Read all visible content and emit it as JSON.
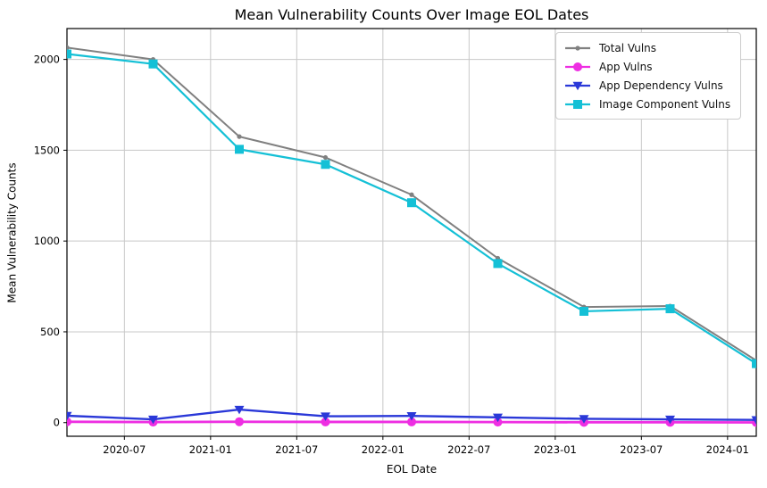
{
  "title": "Mean Vulnerability Counts Over Image EOL Dates",
  "chart_data": {
    "type": "line",
    "title": "Mean Vulnerability Counts Over Image EOL Dates",
    "xlabel": "EOL Date",
    "ylabel": "Mean Vulnerability Counts",
    "grid": true,
    "grid_color": "#c8c8c8",
    "legend_position": "upper right",
    "x_dates": [
      "2020-03",
      "2020-09",
      "2021-03",
      "2021-09",
      "2022-03",
      "2022-09",
      "2023-03",
      "2023-09",
      "2024-03"
    ],
    "x_months": [
      0,
      6,
      12,
      18,
      24,
      30,
      36,
      42,
      48
    ],
    "xlim_months": [
      0,
      48
    ],
    "x_tick_labels": [
      "2020-07",
      "2021-01",
      "2021-07",
      "2022-01",
      "2022-07",
      "2023-01",
      "2023-07",
      "2024-01"
    ],
    "x_tick_months": [
      4,
      10,
      16,
      22,
      28,
      34,
      40,
      46
    ],
    "y_ticks": [
      0,
      500,
      1000,
      1500,
      2000
    ],
    "ylim": [
      -75,
      2170
    ],
    "series": [
      {
        "name": "Total Vulns",
        "color": "#808080",
        "marker": "circle-small",
        "line_width": 2,
        "values": [
          2065,
          2000,
          1575,
          1460,
          1255,
          905,
          637,
          642,
          342
        ]
      },
      {
        "name": "App Vulns",
        "color": "#ee2ee2",
        "marker": "circle",
        "line_width": 2.8,
        "values": [
          5,
          3,
          5,
          4,
          4,
          3,
          2,
          2,
          1
        ]
      },
      {
        "name": "App Dependency Vulns",
        "color": "#2a38d8",
        "marker": "triangle-down",
        "line_width": 2.4,
        "values": [
          38,
          18,
          72,
          35,
          37,
          29,
          21,
          18,
          15
        ]
      },
      {
        "name": "Image Component Vulns",
        "color": "#14c0d6",
        "marker": "square",
        "line_width": 2.2,
        "values": [
          2030,
          1975,
          1505,
          1422,
          1211,
          876,
          613,
          627,
          325
        ]
      }
    ]
  }
}
